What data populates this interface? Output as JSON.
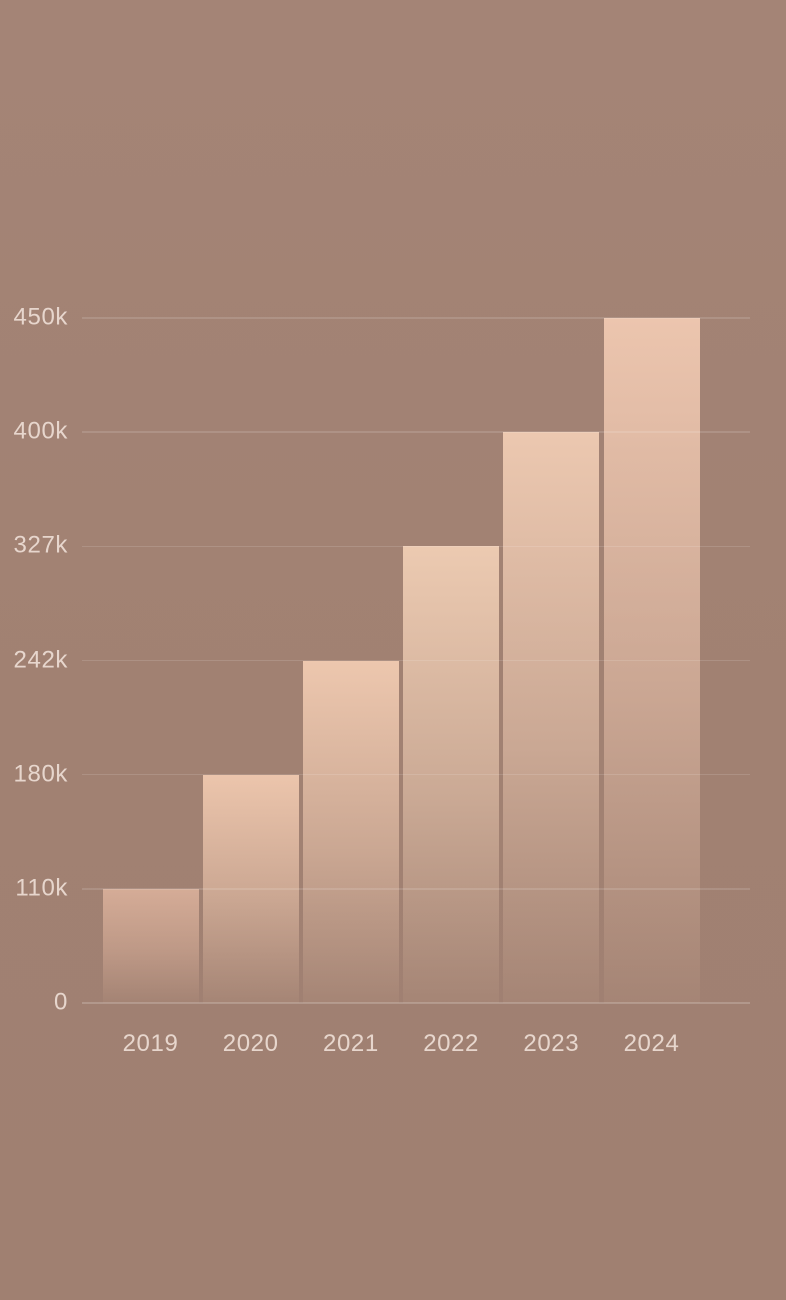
{
  "chart_data": {
    "type": "bar",
    "title": "",
    "xlabel": "",
    "ylabel": "",
    "categories": [
      "2019",
      "2020",
      "2021",
      "2022",
      "2023",
      "2024"
    ],
    "values": [
      110000,
      180000,
      242000,
      327000,
      400000,
      450000
    ],
    "value_labels": [
      "110k",
      "180k",
      "242k",
      "327k",
      "400k",
      "450k"
    ],
    "y_ticks_top_to_bottom": [
      "450k",
      "400k",
      "327k",
      "242k",
      "180k",
      "110k",
      "0"
    ],
    "ylim_labels": [
      "0",
      "450k"
    ],
    "grid": "horizontal-only, evenly spaced, drawn over bars",
    "legend": "none",
    "bar_top_colors": [
      "#d5ac97",
      "#ecc5ac",
      "#edc7ae",
      "#eccab1",
      "#ecc8b0",
      "#ecc5ae"
    ],
    "bar_fade": "each bar fades to near-transparent at the baseline"
  },
  "colors": {
    "background": "#a28273",
    "axis_text": "#e7d6cd",
    "gridline": "rgba(255,255,255,0.13)"
  }
}
